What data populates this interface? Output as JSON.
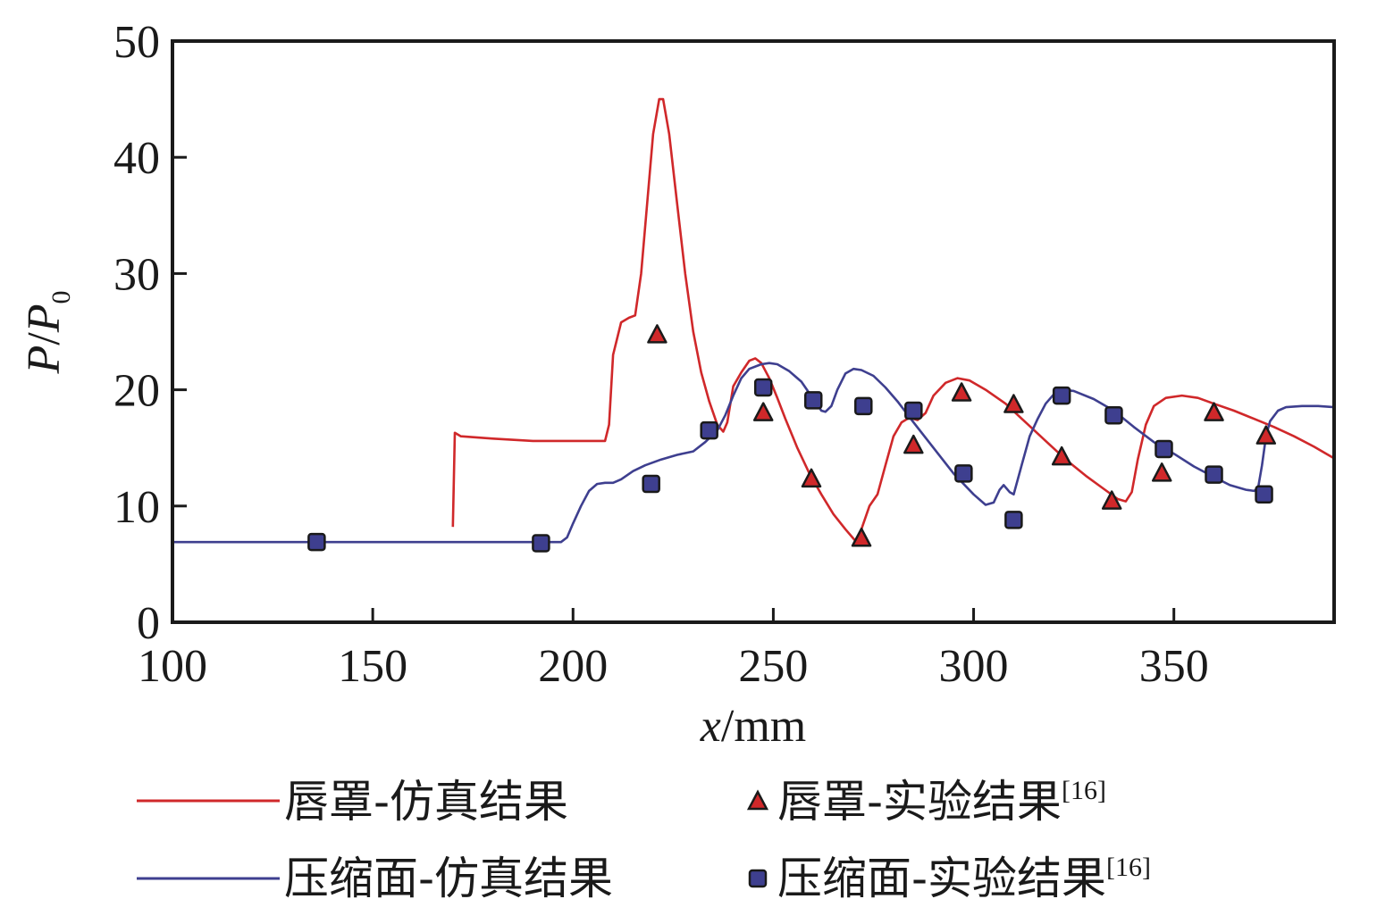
{
  "chart_data": {
    "type": "line",
    "title": "",
    "xlabel": {
      "var": "x",
      "unit": "/mm"
    },
    "ylabel": {
      "num": "P",
      "slash": "/",
      "den": "P",
      "sub": "0"
    },
    "xlim": [
      100,
      390
    ],
    "ylim": [
      0,
      50
    ],
    "xticks": [
      100,
      150,
      200,
      250,
      300,
      350
    ],
    "yticks": [
      0,
      10,
      20,
      30,
      40,
      50
    ],
    "grid": false,
    "legend_position": "bottom",
    "series": [
      {
        "name": "唇罩-仿真结果",
        "kind": "line",
        "color": "#d0282a",
        "points": [
          [
            170,
            8.2
          ],
          [
            170.5,
            16.3
          ],
          [
            172,
            16.0
          ],
          [
            180,
            15.8
          ],
          [
            190,
            15.6
          ],
          [
            200,
            15.6
          ],
          [
            208,
            15.6
          ],
          [
            209,
            17
          ],
          [
            210,
            23
          ],
          [
            212,
            25.8
          ],
          [
            214,
            26.2
          ],
          [
            215.5,
            26.4
          ],
          [
            217,
            30
          ],
          [
            218.5,
            36
          ],
          [
            220,
            42
          ],
          [
            221.5,
            45
          ],
          [
            222.5,
            45
          ],
          [
            224,
            42
          ],
          [
            226,
            36
          ],
          [
            228,
            30
          ],
          [
            230,
            25
          ],
          [
            232,
            21.5
          ],
          [
            234,
            19
          ],
          [
            236,
            17
          ],
          [
            237.5,
            16.4
          ],
          [
            238.5,
            17.2
          ],
          [
            240,
            20.3
          ],
          [
            242,
            21.5
          ],
          [
            244,
            22.5
          ],
          [
            245.5,
            22.7
          ],
          [
            247,
            22.3
          ],
          [
            249,
            21
          ],
          [
            251,
            19.3
          ],
          [
            253,
            17.5
          ],
          [
            256,
            15
          ],
          [
            259,
            12.8
          ],
          [
            262,
            11
          ],
          [
            265,
            9.3
          ],
          [
            268,
            8
          ],
          [
            270.5,
            7
          ],
          [
            272,
            8
          ],
          [
            274,
            10
          ],
          [
            276,
            11
          ],
          [
            278,
            13.5
          ],
          [
            280,
            16
          ],
          [
            282,
            17.2
          ],
          [
            284,
            17.6
          ],
          [
            286,
            17.4
          ],
          [
            288,
            18
          ],
          [
            290,
            19.5
          ],
          [
            293,
            20.6
          ],
          [
            296,
            21
          ],
          [
            299,
            20.8
          ],
          [
            303,
            20
          ],
          [
            308,
            18.8
          ],
          [
            313,
            17.2
          ],
          [
            318,
            15.6
          ],
          [
            323,
            14
          ],
          [
            328,
            12.6
          ],
          [
            332,
            11.6
          ],
          [
            336,
            10.6
          ],
          [
            338,
            10.4
          ],
          [
            339.5,
            11.2
          ],
          [
            341,
            14
          ],
          [
            343,
            17
          ],
          [
            345,
            18.6
          ],
          [
            348,
            19.3
          ],
          [
            352,
            19.5
          ],
          [
            356,
            19.3
          ],
          [
            360,
            18.8
          ],
          [
            365,
            18.2
          ],
          [
            370,
            17.5
          ],
          [
            375,
            16.8
          ],
          [
            380,
            16
          ],
          [
            385,
            15.1
          ],
          [
            390,
            14.1
          ]
        ]
      },
      {
        "name": "压缩面-仿真结果",
        "kind": "line",
        "color": "#3e3f8f",
        "points": [
          [
            100,
            6.9
          ],
          [
            120,
            6.9
          ],
          [
            150,
            6.9
          ],
          [
            180,
            6.9
          ],
          [
            197,
            6.9
          ],
          [
            198.5,
            7.3
          ],
          [
            200,
            8.5
          ],
          [
            202,
            10
          ],
          [
            204,
            11.3
          ],
          [
            206,
            11.9
          ],
          [
            208,
            12.0
          ],
          [
            210,
            12.0
          ],
          [
            212,
            12.3
          ],
          [
            215,
            13
          ],
          [
            218,
            13.5
          ],
          [
            222,
            14
          ],
          [
            226,
            14.4
          ],
          [
            230,
            14.7
          ],
          [
            233,
            15.5
          ],
          [
            236,
            16.5
          ],
          [
            238,
            17.8
          ],
          [
            240,
            19.5
          ],
          [
            242,
            21
          ],
          [
            244,
            21.8
          ],
          [
            247,
            22.2
          ],
          [
            249,
            22.3
          ],
          [
            251,
            22.2
          ],
          [
            254,
            21.6
          ],
          [
            257,
            20.7
          ],
          [
            260,
            19.2
          ],
          [
            262,
            18.2
          ],
          [
            263,
            18.1
          ],
          [
            264.5,
            18.6
          ],
          [
            266,
            20
          ],
          [
            268,
            21.4
          ],
          [
            270,
            21.8
          ],
          [
            272,
            21.7
          ],
          [
            275,
            21.2
          ],
          [
            278,
            20.2
          ],
          [
            281,
            19
          ],
          [
            285,
            17.2
          ],
          [
            290,
            15
          ],
          [
            295,
            12.8
          ],
          [
            300,
            11
          ],
          [
            303,
            10.1
          ],
          [
            305,
            10.3
          ],
          [
            306.5,
            11.4
          ],
          [
            307.5,
            11.8
          ],
          [
            309,
            11.2
          ],
          [
            310,
            11
          ],
          [
            312,
            13.5
          ],
          [
            314,
            16
          ],
          [
            316,
            17.5
          ],
          [
            318,
            18.8
          ],
          [
            320,
            19.6
          ],
          [
            322,
            20
          ],
          [
            325,
            19.9
          ],
          [
            330,
            19.2
          ],
          [
            335,
            18.2
          ],
          [
            340,
            16.8
          ],
          [
            345,
            15.5
          ],
          [
            350,
            14.5
          ],
          [
            355,
            13.4
          ],
          [
            360,
            12.5
          ],
          [
            364,
            11.8
          ],
          [
            368,
            11.4
          ],
          [
            370,
            11.3
          ],
          [
            371,
            11.5
          ],
          [
            372,
            13.5
          ],
          [
            373,
            16
          ],
          [
            374,
            17.3
          ],
          [
            376,
            18.2
          ],
          [
            378,
            18.5
          ],
          [
            382,
            18.6
          ],
          [
            386,
            18.6
          ],
          [
            390,
            18.5
          ]
        ]
      },
      {
        "name": "唇罩-实验结果",
        "ref": "[16]",
        "kind": "scatter",
        "marker": "triangle",
        "color": "#d0282a",
        "points": [
          [
            221,
            24.7
          ],
          [
            247.5,
            18
          ],
          [
            259.5,
            12.3
          ],
          [
            272,
            7.2
          ],
          [
            285,
            15.2
          ],
          [
            297,
            19.7
          ],
          [
            310,
            18.7
          ],
          [
            322,
            14.2
          ],
          [
            334.5,
            10.4
          ],
          [
            347,
            12.8
          ],
          [
            360,
            18
          ],
          [
            373,
            16
          ]
        ]
      },
      {
        "name": "压缩面-实验结果",
        "ref": "[16]",
        "kind": "scatter",
        "marker": "square",
        "color": "#3e3f8f",
        "points": [
          [
            136,
            6.9
          ],
          [
            192,
            6.8
          ],
          [
            219.5,
            11.9
          ],
          [
            234,
            16.5
          ],
          [
            247.5,
            20.2
          ],
          [
            260,
            19.1
          ],
          [
            272.5,
            18.6
          ],
          [
            285,
            18.2
          ],
          [
            297.5,
            12.8
          ],
          [
            310,
            8.8
          ],
          [
            322,
            19.5
          ],
          [
            335,
            17.8
          ],
          [
            347.5,
            14.9
          ],
          [
            360,
            12.7
          ],
          [
            372.5,
            11
          ]
        ]
      }
    ]
  },
  "colors": {
    "axis": "#1a1a1a",
    "marker_edge": "#1a1a1a"
  }
}
